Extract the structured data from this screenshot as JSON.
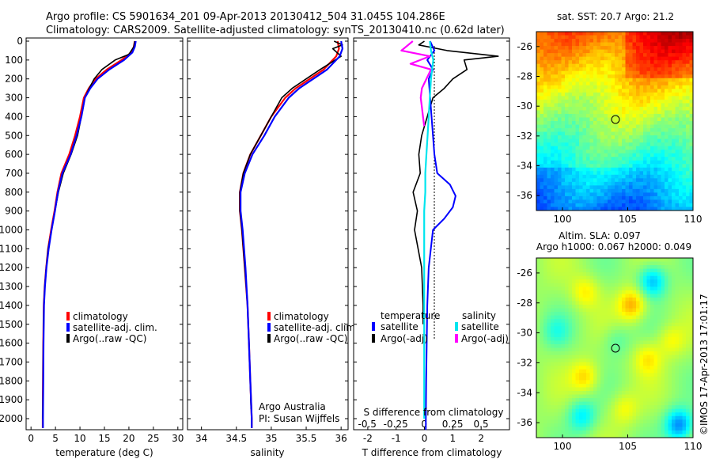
{
  "header": {
    "line1": "Argo profile: CS 5901634_201 09-Apr-2013 20130412_504 31.045S 104.286E",
    "line2": "Climatology: CARS2009. Satellite-adjusted climatology: synTS_20130410.nc (0.62d later)"
  },
  "depth_ticks": [
    "0",
    "100",
    "200",
    "300",
    "400",
    "500",
    "600",
    "700",
    "800",
    "900",
    "1000",
    "1100",
    "1200",
    "1300",
    "1400",
    "1500",
    "1600",
    "1700",
    "1800",
    "1900",
    "2000"
  ],
  "colors": {
    "climatology": "#ff0000",
    "satellite": "#0000ff",
    "argo": "#000000",
    "sat_salinity": "#00e5ee",
    "argo_salinity": "#ff00ff"
  },
  "temp_panel": {
    "xlabel": "temperature (deg C)",
    "xticks": [
      "0",
      "5",
      "10",
      "15",
      "20",
      "25",
      "30"
    ],
    "legend": [
      "climatology",
      "satellite-adj. clim.",
      "Argo(..raw -QC)"
    ]
  },
  "sal_panel": {
    "xlabel": "salinity",
    "xticks": [
      "34",
      "34.5",
      "35",
      "35.5",
      "36"
    ],
    "legend": [
      "climatology",
      "satellite-adj. clim.",
      "Argo(..raw -QC)"
    ],
    "note1": "Argo Australia",
    "note2": "PI: Susan Wijffels"
  },
  "diff_panel": {
    "xlabel": "T difference from climatology",
    "top_axis_label": "S difference from climatology",
    "top_ticks": [
      "-0.5",
      "-0.25",
      "0",
      "0.25",
      "0.5"
    ],
    "xticks": [
      "-2",
      "-1",
      "0",
      "1",
      "2"
    ],
    "legend_temp_title": "temperature",
    "legend_sal_title": "salinity",
    "legend_temp": [
      "satellite",
      "Argo(-adj)"
    ],
    "legend_sal": [
      "satellite",
      "Argo(-adj)"
    ]
  },
  "map_sst": {
    "title": "sat. SST: 20.7  Argo: 21.2",
    "yticks": [
      "-26",
      "-28",
      "-30",
      "-32",
      "-34",
      "-36"
    ],
    "xticks": [
      "100",
      "105",
      "110"
    ]
  },
  "map_sla": {
    "title1": "Altim. SLA: 0.097",
    "title2": "Argo h1000: 0.067 h2000: 0.049",
    "yticks": [
      "-26",
      "-28",
      "-30",
      "-32",
      "-34",
      "-36"
    ],
    "xticks": [
      "100",
      "105",
      "110"
    ]
  },
  "footer": "©IMOS 17-Apr-2013 17:01:17",
  "chart_data": [
    {
      "type": "line",
      "xlabel": "temperature (deg C)",
      "ylabel": "",
      "xlim": [
        -1,
        31
      ],
      "ylim": [
        2075,
        -10
      ],
      "series": [
        {
          "name": "climatology",
          "x": [
            21.2,
            21.0,
            20.5,
            18.5,
            15.5,
            13.2,
            11.8,
            10.8,
            10.0,
            9.0,
            7.8,
            6.2,
            5.4,
            4.8,
            4.1,
            3.5,
            3.1,
            2.8,
            2.6,
            2.5,
            2.45,
            2.4,
            2.4
          ],
          "y": [
            0,
            30,
            60,
            100,
            150,
            200,
            250,
            300,
            400,
            500,
            600,
            700,
            800,
            900,
            1000,
            1100,
            1200,
            1300,
            1400,
            1600,
            1800,
            2000,
            2050
          ]
        },
        {
          "name": "satellite-adj. clim.",
          "x": [
            21.4,
            21.2,
            20.7,
            19.0,
            16.0,
            13.6,
            12.1,
            11.0,
            10.3,
            9.3,
            8.1,
            6.4,
            5.5,
            4.9,
            4.2,
            3.6,
            3.15,
            2.85,
            2.65,
            2.55,
            2.5,
            2.45,
            2.45
          ],
          "y": [
            0,
            30,
            60,
            100,
            150,
            200,
            250,
            300,
            400,
            500,
            600,
            700,
            800,
            900,
            1000,
            1100,
            1200,
            1300,
            1400,
            1600,
            1800,
            2000,
            2050
          ]
        },
        {
          "name": "Argo(..raw -QC)",
          "x": [
            21.2,
            21.0,
            20.0,
            17.2,
            14.5,
            12.9,
            11.9,
            11.0,
            10.3,
            9.5,
            8.2,
            6.6,
            5.6,
            4.9,
            4.2,
            3.5,
            3.1,
            2.8,
            2.6,
            2.5,
            2.45,
            2.4
          ],
          "y": [
            0,
            30,
            70,
            100,
            150,
            200,
            250,
            300,
            400,
            500,
            600,
            700,
            800,
            900,
            1000,
            1100,
            1200,
            1300,
            1400,
            1600,
            1800,
            2000
          ]
        }
      ]
    },
    {
      "type": "line",
      "xlabel": "salinity",
      "ylabel": "",
      "xlim": [
        33.8,
        36.1
      ],
      "ylim": [
        2075,
        -10
      ],
      "series": [
        {
          "name": "climatology",
          "x": [
            35.95,
            35.97,
            35.93,
            35.75,
            35.55,
            35.35,
            35.2,
            35.0,
            34.85,
            34.7,
            34.6,
            34.55,
            34.55,
            34.58,
            34.62,
            34.66,
            34.68,
            34.7,
            34.71,
            34.72,
            34.72
          ],
          "y": [
            0,
            40,
            80,
            150,
            200,
            250,
            300,
            400,
            500,
            600,
            700,
            800,
            900,
            1000,
            1200,
            1400,
            1600,
            1800,
            1900,
            2000,
            2050
          ]
        },
        {
          "name": "satellite-adj. clim.",
          "x": [
            36.0,
            36.02,
            35.98,
            35.8,
            35.6,
            35.4,
            35.25,
            35.05,
            34.9,
            34.73,
            34.62,
            34.56,
            34.56,
            34.59,
            34.63,
            34.66,
            34.68,
            34.7,
            34.71,
            34.72,
            34.72
          ],
          "y": [
            0,
            40,
            80,
            150,
            200,
            250,
            300,
            400,
            500,
            600,
            700,
            800,
            900,
            1000,
            1200,
            1400,
            1600,
            1800,
            1900,
            2000,
            2050
          ]
        },
        {
          "name": "Argo(..raw -QC)",
          "x": [
            35.9,
            36.02,
            35.88,
            36.0,
            35.7,
            35.5,
            35.3,
            35.15,
            35.0,
            34.85,
            34.7,
            34.6,
            34.55,
            34.55,
            34.58,
            34.62,
            34.66,
            34.68,
            34.7,
            34.71
          ],
          "y": [
            0,
            20,
            40,
            80,
            150,
            200,
            250,
            300,
            400,
            500,
            600,
            700,
            800,
            900,
            1000,
            1200,
            1400,
            1600,
            1800,
            1950
          ]
        }
      ]
    },
    {
      "type": "line",
      "xlabel": "T difference from climatology",
      "ylabel": "",
      "xlim": [
        -2.5,
        3.0
      ],
      "ylim": [
        2075,
        -10
      ],
      "series": [
        {
          "name": "satellite",
          "x": [
            0.2,
            0.35,
            0.1,
            0.3,
            0.15,
            0.2,
            0.25,
            0.3,
            0.35,
            0.45,
            0.9,
            1.1,
            1.0,
            0.7,
            0.3,
            0.15,
            0.1,
            0.08,
            0.06,
            0.05,
            0.05,
            0.04
          ],
          "y": [
            0,
            50,
            100,
            150,
            200,
            300,
            400,
            500,
            600,
            700,
            760,
            820,
            880,
            940,
            1000,
            1200,
            1400,
            1600,
            1800,
            2000,
            2050,
            2060
          ]
        },
        {
          "name": "Argo(-adj)",
          "x": [
            0.0,
            -0.2,
            0.8,
            2.6,
            1.4,
            1.5,
            1.0,
            0.7,
            0.3,
            0.1,
            -0.1,
            -0.2,
            -0.15,
            -0.4,
            -0.25,
            -0.35,
            -0.1,
            -0.05,
            -0.05
          ],
          "y": [
            0,
            20,
            50,
            80,
            100,
            150,
            200,
            250,
            300,
            400,
            500,
            600,
            700,
            800,
            900,
            1000,
            1200,
            1400,
            1500
          ]
        }
      ]
    },
    {
      "type": "line",
      "xlabel": "S difference from climatology",
      "ylabel": "",
      "xlim": [
        -0.62,
        0.75
      ],
      "ylim": [
        2075,
        -10
      ],
      "series": [
        {
          "name": "satellite",
          "x": [
            0.05,
            0.06,
            0.08,
            0.07,
            0.06,
            0.05,
            0.04,
            0.03,
            0.02,
            0.01,
            0.01,
            0.0,
            0.0,
            0.0,
            0.0,
            0.0,
            0.0,
            0.0
          ],
          "y": [
            0,
            50,
            100,
            150,
            200,
            300,
            400,
            500,
            600,
            700,
            800,
            900,
            1000,
            1200,
            1400,
            1600,
            1800,
            2000
          ]
        },
        {
          "name": "Argo(-adj)",
          "x": [
            -0.1,
            -0.2,
            0.05,
            -0.12,
            0.06,
            0.02,
            -0.02,
            -0.03,
            -0.02,
            -0.01,
            0.0
          ],
          "y": [
            0,
            50,
            80,
            120,
            150,
            200,
            250,
            300,
            350,
            400,
            450
          ]
        }
      ]
    },
    {
      "type": "heatmap",
      "title": "sat. SST: 20.7  Argo: 21.2",
      "xlim": [
        98,
        110
      ],
      "ylim": [
        -37,
        -25
      ],
      "marker": {
        "lon": 104.286,
        "lat": -31.045
      }
    },
    {
      "type": "heatmap",
      "title": "Altim. SLA: 0.097 / Argo h1000: 0.067 h2000: 0.049",
      "xlim": [
        98,
        110
      ],
      "ylim": [
        -37,
        -25
      ],
      "marker": {
        "lon": 104.286,
        "lat": -31.045
      }
    }
  ]
}
